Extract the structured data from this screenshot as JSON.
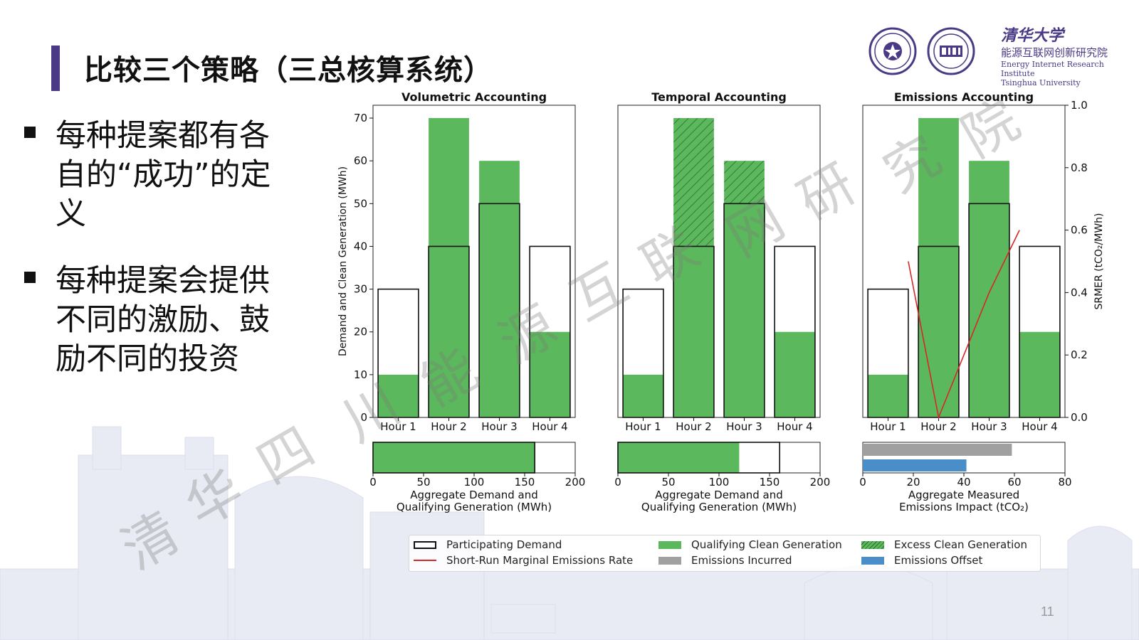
{
  "slide": {
    "title": "比较三个策略（三总核算系统）",
    "bullets": [
      {
        "text": "每种提案都有各自的“成功”的定义"
      },
      {
        "text": "每种提案会提供不同的激励、鼓励不同的投资"
      }
    ],
    "logo_text": {
      "cn_university": "清华大学",
      "cn_institute": "能源互联网创新研究院",
      "en_line1": "Energy Internet Research Institute",
      "en_line2": "Tsinghua University"
    },
    "logo_badges": [
      "tsinghua-seal-icon",
      "eiri-seal-icon"
    ],
    "watermark": [
      "清",
      "华",
      "四",
      "川",
      "能",
      "源",
      "互",
      "联",
      "网",
      "研",
      "究",
      "院"
    ],
    "page_number": "11"
  },
  "colors": {
    "accent": "#4a3a86",
    "green": "#5cb85c",
    "gray": "#a0a0a0",
    "blue": "#4a8ec9",
    "red": "#d62728"
  },
  "chart_data": [
    {
      "type": "bar",
      "title": "Volumetric Accounting",
      "categories": [
        "Hour 1",
        "Hour 2",
        "Hour 3",
        "Hour 4"
      ],
      "ylabel": "Demand and Clean Generation (MWh)",
      "ylim": [
        0,
        73
      ],
      "yticks": [
        0,
        10,
        20,
        30,
        40,
        50,
        60,
        70
      ],
      "series": [
        {
          "name": "Participating Demand",
          "values": [
            30,
            40,
            50,
            40
          ]
        },
        {
          "name": "Qualifying Clean Generation",
          "values": [
            10,
            70,
            60,
            20
          ]
        }
      ],
      "aggregate": {
        "xlabel": "Aggregate Demand and\nQualifying Generation (MWh)",
        "xlim": [
          0,
          200
        ],
        "xticks": [
          0,
          50,
          100,
          150,
          200
        ],
        "demand": 160,
        "qualifying": 160
      }
    },
    {
      "type": "bar",
      "title": "Temporal Accounting",
      "categories": [
        "Hour 1",
        "Hour 2",
        "Hour 3",
        "Hour 4"
      ],
      "ylim": [
        0,
        73
      ],
      "series": [
        {
          "name": "Participating Demand",
          "values": [
            30,
            40,
            50,
            40
          ]
        },
        {
          "name": "Qualifying Clean Generation",
          "values": [
            10,
            40,
            50,
            20
          ]
        },
        {
          "name": "Excess Clean Generation",
          "values": [
            0,
            30,
            10,
            0
          ]
        }
      ],
      "aggregate": {
        "xlabel": "Aggregate Demand and\nQualifying Generation (MWh)",
        "xlim": [
          0,
          200
        ],
        "xticks": [
          0,
          50,
          100,
          150,
          200
        ],
        "demand": 160,
        "qualifying": 120
      }
    },
    {
      "type": "bar",
      "title": "Emissions Accounting",
      "categories": [
        "Hour 1",
        "Hour 2",
        "Hour 3",
        "Hour 4"
      ],
      "ylim": [
        0,
        73
      ],
      "y2label": "SRMER (tCO2/MWh)",
      "y2lim": [
        0,
        1.0
      ],
      "y2ticks": [
        0.0,
        0.2,
        0.4,
        0.6,
        0.8,
        1.0
      ],
      "series": [
        {
          "name": "Participating Demand",
          "values": [
            30,
            40,
            50,
            40
          ]
        },
        {
          "name": "Qualifying Clean Generation",
          "values": [
            10,
            70,
            60,
            20
          ]
        }
      ],
      "srmer": {
        "name": "Short-Run Marginal Emissions Rate",
        "x": [
          0.4,
          1.0,
          2.0,
          2.6
        ],
        "values": [
          0.5,
          0.0,
          0.4,
          0.6
        ]
      },
      "aggregate": {
        "xlabel": "Aggregate Measured\nEmissions Impact (tCO2)",
        "xlim": [
          0,
          80
        ],
        "xticks": [
          0,
          20,
          40,
          60,
          80
        ],
        "emissions_incurred": 59,
        "emissions_offset": 41
      }
    }
  ],
  "legend": [
    {
      "name": "Participating Demand",
      "swatch": "outline"
    },
    {
      "name": "Qualifying Clean Generation",
      "swatch": "green"
    },
    {
      "name": "Excess Clean Generation",
      "swatch": "hatch"
    },
    {
      "name": "Short-Run Marginal Emissions Rate",
      "swatch": "red-line"
    },
    {
      "name": "Emissions Incurred",
      "swatch": "gray"
    },
    {
      "name": "Emissions Offset",
      "swatch": "blue"
    }
  ]
}
